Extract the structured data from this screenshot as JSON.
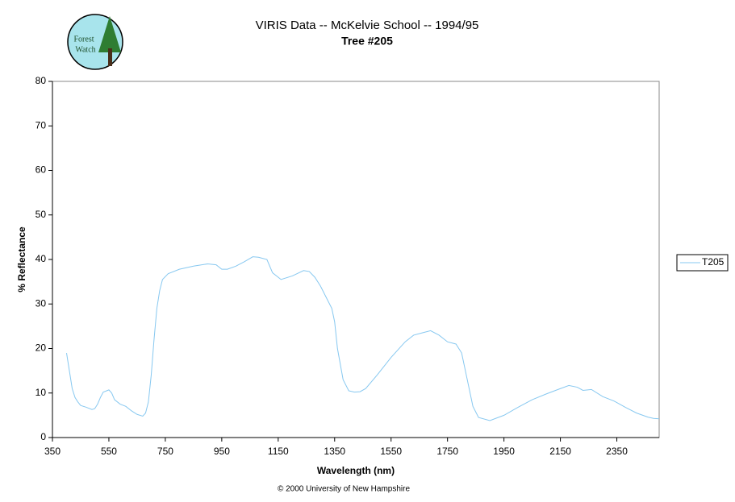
{
  "chart_data": {
    "type": "line",
    "title": "VIRIS Data -- McKelvie School -- 1994/95",
    "subtitle": "Tree #205",
    "x_label": "Wavelength (nm)",
    "y_label": "% Reflectance",
    "footer": "© 2000 University of New Hampshire",
    "logo_text": [
      "Forest",
      "Watch"
    ],
    "x": [
      400,
      410,
      420,
      430,
      440,
      450,
      470,
      490,
      500,
      510,
      520,
      530,
      550,
      560,
      570,
      590,
      610,
      630,
      650,
      670,
      680,
      690,
      700,
      710,
      720,
      730,
      740,
      760,
      800,
      850,
      900,
      930,
      950,
      970,
      1000,
      1030,
      1060,
      1080,
      1110,
      1130,
      1160,
      1200,
      1240,
      1260,
      1280,
      1300,
      1320,
      1340,
      1350,
      1360,
      1380,
      1400,
      1420,
      1440,
      1460,
      1500,
      1550,
      1600,
      1630,
      1660,
      1690,
      1720,
      1750,
      1780,
      1800,
      1820,
      1840,
      1860,
      1900,
      1950,
      2000,
      2050,
      2100,
      2150,
      2180,
      2210,
      2230,
      2260,
      2300,
      2340,
      2380,
      2420,
      2460,
      2480,
      2500
    ],
    "series": [
      {
        "name": "T205",
        "color": "#87c8f0",
        "values": [
          19,
          15,
          11,
          9,
          8,
          7.2,
          6.8,
          6.3,
          6.5,
          7.5,
          9,
          10.2,
          10.7,
          10,
          8.5,
          7.5,
          7,
          6,
          5.2,
          4.8,
          5.5,
          8,
          14,
          22,
          29,
          33,
          35.5,
          36.8,
          37.8,
          38.5,
          39,
          38.8,
          37.8,
          37.8,
          38.5,
          39.5,
          40.6,
          40.5,
          40,
          37,
          35.5,
          36.3,
          37.5,
          37.3,
          36,
          34,
          31.5,
          29,
          26,
          20,
          13,
          10.5,
          10.2,
          10.3,
          11,
          14,
          18,
          21.5,
          23,
          23.5,
          24,
          23,
          21.5,
          21,
          19,
          13,
          7,
          4.5,
          3.8,
          5,
          6.8,
          8.5,
          9.8,
          11,
          11.7,
          11.3,
          10.6,
          10.8,
          9.2,
          8.2,
          6.8,
          5.5,
          4.6,
          4.3,
          4.2
        ]
      }
    ],
    "xlim": [
      350,
      2500
    ],
    "ylim": [
      0,
      80
    ],
    "xticks": [
      350,
      550,
      750,
      950,
      1150,
      1350,
      1550,
      1750,
      1950,
      2150,
      2350
    ],
    "yticks": [
      0,
      10,
      20,
      30,
      40,
      50,
      60,
      70,
      80
    ],
    "grid": false
  }
}
